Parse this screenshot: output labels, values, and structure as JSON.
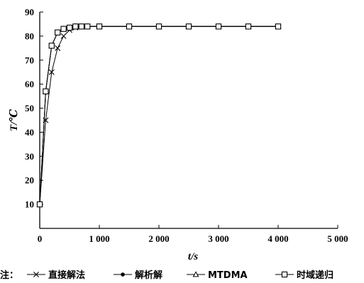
{
  "chart_data": {
    "type": "line",
    "xlabel": "t/s",
    "ylabel": "T/℃",
    "xlim": [
      0,
      5000
    ],
    "ylim": [
      0,
      90
    ],
    "xticks": [
      0,
      1000,
      2000,
      3000,
      4000,
      5000
    ],
    "xtick_labels": [
      "0",
      "1 000",
      "2 000",
      "3 000",
      "4 000",
      "5 000"
    ],
    "yticks": [
      10,
      20,
      30,
      40,
      50,
      60,
      70,
      80,
      90
    ],
    "ytick_labels": [
      "10",
      "20",
      "30",
      "40",
      "50",
      "60",
      "70",
      "80",
      "90"
    ],
    "grid": false,
    "legend_prefix": "注：",
    "legend_position": "bottom",
    "series": [
      {
        "name": "直接解法",
        "marker": "x",
        "x": [
          0,
          100,
          200,
          300,
          400,
          500,
          600,
          700,
          800,
          1000,
          1500,
          2000,
          2500,
          3000,
          3500,
          4000
        ],
        "y": [
          10,
          45,
          65,
          75,
          80,
          82.5,
          83.5,
          84,
          84,
          84,
          84,
          84,
          84,
          84,
          84,
          84
        ]
      },
      {
        "name": "解析解",
        "marker": "dot",
        "x": [
          0,
          100,
          200,
          300,
          400,
          500,
          600,
          700,
          800,
          1000,
          1500,
          2000,
          2500,
          3000,
          3500,
          4000
        ],
        "y": [
          10,
          57,
          76,
          81.5,
          83,
          83.5,
          84,
          84,
          84,
          84,
          84,
          84,
          84,
          84,
          84,
          84
        ]
      },
      {
        "name": "MTDMA",
        "marker": "triangle",
        "x": [
          0,
          100,
          200,
          300,
          400,
          500,
          600,
          700,
          800,
          1000,
          1500,
          2000,
          2500,
          3000,
          3500,
          4000
        ],
        "y": [
          10,
          57,
          76,
          81.5,
          83,
          83.5,
          84,
          84,
          84,
          84,
          84,
          84,
          84,
          84,
          84,
          84
        ]
      },
      {
        "name": "时域递归",
        "marker": "square",
        "x": [
          0,
          100,
          200,
          300,
          400,
          500,
          600,
          700,
          800,
          1000,
          1500,
          2000,
          2500,
          3000,
          3500,
          4000
        ],
        "y": [
          10,
          57,
          76,
          81.5,
          83,
          83.5,
          84,
          84,
          84,
          84,
          84,
          84,
          84,
          84,
          84,
          84
        ]
      }
    ]
  }
}
